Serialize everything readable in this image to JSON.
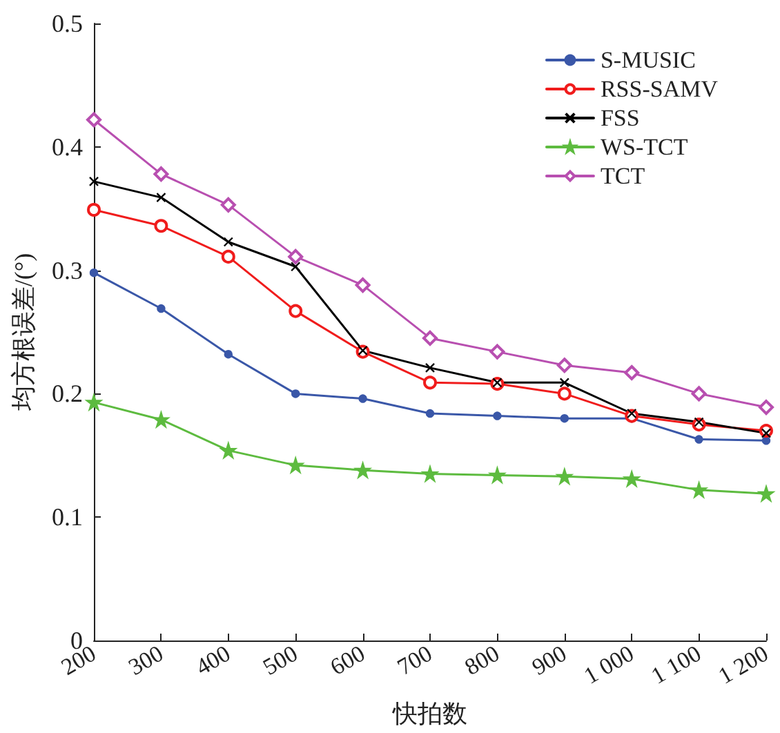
{
  "chart_data": {
    "type": "line",
    "xlabel": "快拍数",
    "ylabel": "均方根误差/(°)",
    "x": [
      200,
      300,
      400,
      500,
      600,
      700,
      800,
      900,
      1000,
      1100,
      1200
    ],
    "xlim": [
      200,
      1200
    ],
    "xticks": [
      200,
      300,
      400,
      500,
      600,
      700,
      800,
      900,
      {
        "value": 1000,
        "label": "1 000"
      },
      {
        "value": 1100,
        "label": "1 100"
      },
      {
        "value": 1200,
        "label": "1 200"
      }
    ],
    "ylim": [
      0,
      0.5
    ],
    "yticks": [
      0,
      0.1,
      0.2,
      0.3,
      0.4,
      0.5
    ],
    "grid": false,
    "legend": "top right",
    "series": [
      {
        "name": "S-MUSIC",
        "color": "#3a57a8",
        "marker": "circle",
        "values": [
          0.298,
          0.269,
          0.232,
          0.2,
          0.196,
          0.184,
          0.182,
          0.18,
          0.18,
          0.163,
          0.162
        ]
      },
      {
        "name": "RSS-SAMV",
        "color": "#f01c1c",
        "marker": "circle-open",
        "values": [
          0.349,
          0.336,
          0.311,
          0.267,
          0.234,
          0.209,
          0.208,
          0.2,
          0.182,
          0.175,
          0.17
        ]
      },
      {
        "name": "FSS",
        "color": "#000000",
        "marker": "cross",
        "values": [
          0.372,
          0.359,
          0.323,
          0.303,
          0.235,
          0.221,
          0.209,
          0.209,
          0.184,
          0.177,
          0.168
        ]
      },
      {
        "name": "WS-TCT",
        "color": "#5dbb3f",
        "marker": "star",
        "values": [
          0.193,
          0.179,
          0.154,
          0.142,
          0.138,
          0.135,
          0.134,
          0.133,
          0.131,
          0.122,
          0.119
        ]
      },
      {
        "name": "TCT",
        "color": "#b84fb0",
        "marker": "diamond",
        "values": [
          0.422,
          0.378,
          0.353,
          0.311,
          0.288,
          0.245,
          0.234,
          0.223,
          0.217,
          0.2,
          0.189
        ]
      }
    ]
  }
}
